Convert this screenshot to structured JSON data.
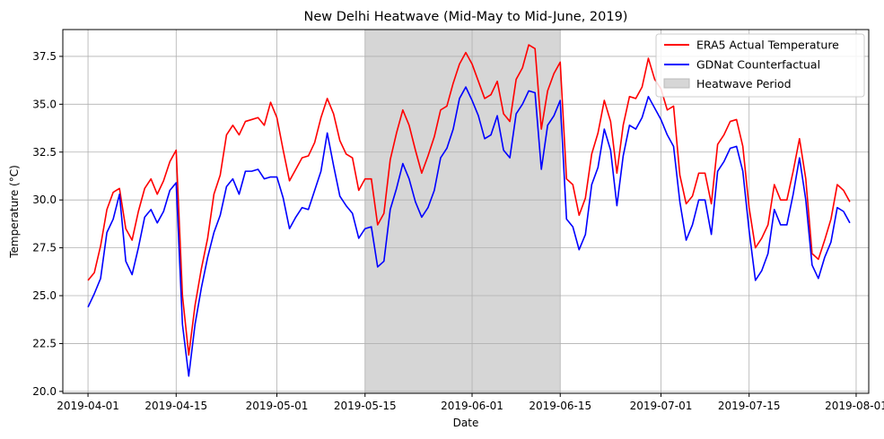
{
  "chart_data": {
    "type": "line",
    "title": "New Delhi Heatwave (Mid-May to Mid-June, 2019)",
    "xlabel": "Date",
    "ylabel": "Temperature (°C)",
    "xlim": [
      "2019-03-28",
      "2019-08-03"
    ],
    "ylim": [
      19.9,
      38.9
    ],
    "grid": true,
    "legend_position": "top-right",
    "x_ticks": [
      "2019-04-01",
      "2019-04-15",
      "2019-05-01",
      "2019-05-15",
      "2019-06-01",
      "2019-06-15",
      "2019-07-01",
      "2019-07-15",
      "2019-08-01"
    ],
    "y_ticks": [
      20.0,
      22.5,
      25.0,
      27.5,
      30.0,
      32.5,
      35.0,
      37.5
    ],
    "y_tick_labels": [
      "20.0",
      "22.5",
      "25.0",
      "27.5",
      "30.0",
      "32.5",
      "35.0",
      "37.5"
    ],
    "start_date": "2019-04-01",
    "shaded_region": {
      "name": "Heatwave Period",
      "start": "2019-05-15",
      "end": "2019-06-15",
      "color": "#d6d6d6"
    },
    "series": [
      {
        "name": "ERA5 Actual Temperature",
        "color": "#ff0000",
        "values": [
          25.8,
          26.2,
          27.6,
          29.5,
          30.4,
          30.6,
          28.5,
          27.9,
          29.4,
          30.6,
          31.1,
          30.3,
          31.0,
          32.0,
          32.6,
          25.0,
          21.9,
          24.5,
          26.4,
          28.0,
          30.3,
          31.3,
          33.4,
          33.9,
          33.4,
          34.1,
          34.2,
          34.3,
          33.9,
          35.1,
          34.3,
          32.6,
          31.0,
          31.6,
          32.2,
          32.3,
          33.0,
          34.3,
          35.3,
          34.5,
          33.1,
          32.4,
          32.2,
          30.5,
          31.1,
          31.1,
          28.7,
          29.3,
          32.1,
          33.5,
          34.7,
          33.9,
          32.6,
          31.4,
          32.3,
          33.3,
          34.7,
          34.9,
          36.1,
          37.1,
          37.7,
          37.1,
          36.2,
          35.3,
          35.5,
          36.2,
          34.5,
          34.1,
          36.3,
          36.9,
          38.1,
          37.9,
          33.7,
          35.7,
          36.6,
          37.2,
          31.1,
          30.8,
          29.2,
          30.1,
          32.4,
          33.5,
          35.2,
          34.1,
          31.4,
          33.9,
          35.4,
          35.3,
          35.9,
          37.4,
          36.3,
          35.8,
          34.7,
          34.9,
          31.3,
          29.8,
          30.2,
          31.4,
          31.4,
          29.8,
          32.9,
          33.4,
          34.1,
          34.2,
          32.8,
          29.6,
          27.5,
          28.0,
          28.7,
          30.8,
          30.0,
          30.0,
          31.5,
          33.2,
          31.1,
          27.2,
          26.9,
          27.9,
          29.0,
          30.8,
          30.5,
          29.9
        ]
      },
      {
        "name": "GDNat Counterfactual",
        "color": "#0000ff",
        "values": [
          24.4,
          25.1,
          25.9,
          28.3,
          29.0,
          30.3,
          26.8,
          26.1,
          27.5,
          29.1,
          29.5,
          28.8,
          29.4,
          30.5,
          30.9,
          23.5,
          20.8,
          23.5,
          25.4,
          27.0,
          28.3,
          29.2,
          30.7,
          31.1,
          30.3,
          31.5,
          31.5,
          31.6,
          31.1,
          31.2,
          31.2,
          30.1,
          28.5,
          29.1,
          29.6,
          29.5,
          30.5,
          31.5,
          33.5,
          31.8,
          30.2,
          29.7,
          29.3,
          28.0,
          28.5,
          28.6,
          26.5,
          26.8,
          29.5,
          30.6,
          31.9,
          31.1,
          29.9,
          29.1,
          29.6,
          30.5,
          32.2,
          32.7,
          33.7,
          35.3,
          35.9,
          35.2,
          34.4,
          33.2,
          33.4,
          34.4,
          32.6,
          32.2,
          34.5,
          35.0,
          35.7,
          35.6,
          31.6,
          33.9,
          34.4,
          35.2,
          29.0,
          28.6,
          27.4,
          28.2,
          30.8,
          31.7,
          33.7,
          32.6,
          29.7,
          32.3,
          33.9,
          33.7,
          34.3,
          35.4,
          34.8,
          34.2,
          33.4,
          32.8,
          29.9,
          27.9,
          28.7,
          30.0,
          30.0,
          28.2,
          31.5,
          32.0,
          32.7,
          32.8,
          31.5,
          28.4,
          25.8,
          26.3,
          27.2,
          29.5,
          28.7,
          28.7,
          30.3,
          32.2,
          30.0,
          26.6,
          25.9,
          27.0,
          27.8,
          29.6,
          29.4,
          28.8
        ]
      }
    ]
  }
}
